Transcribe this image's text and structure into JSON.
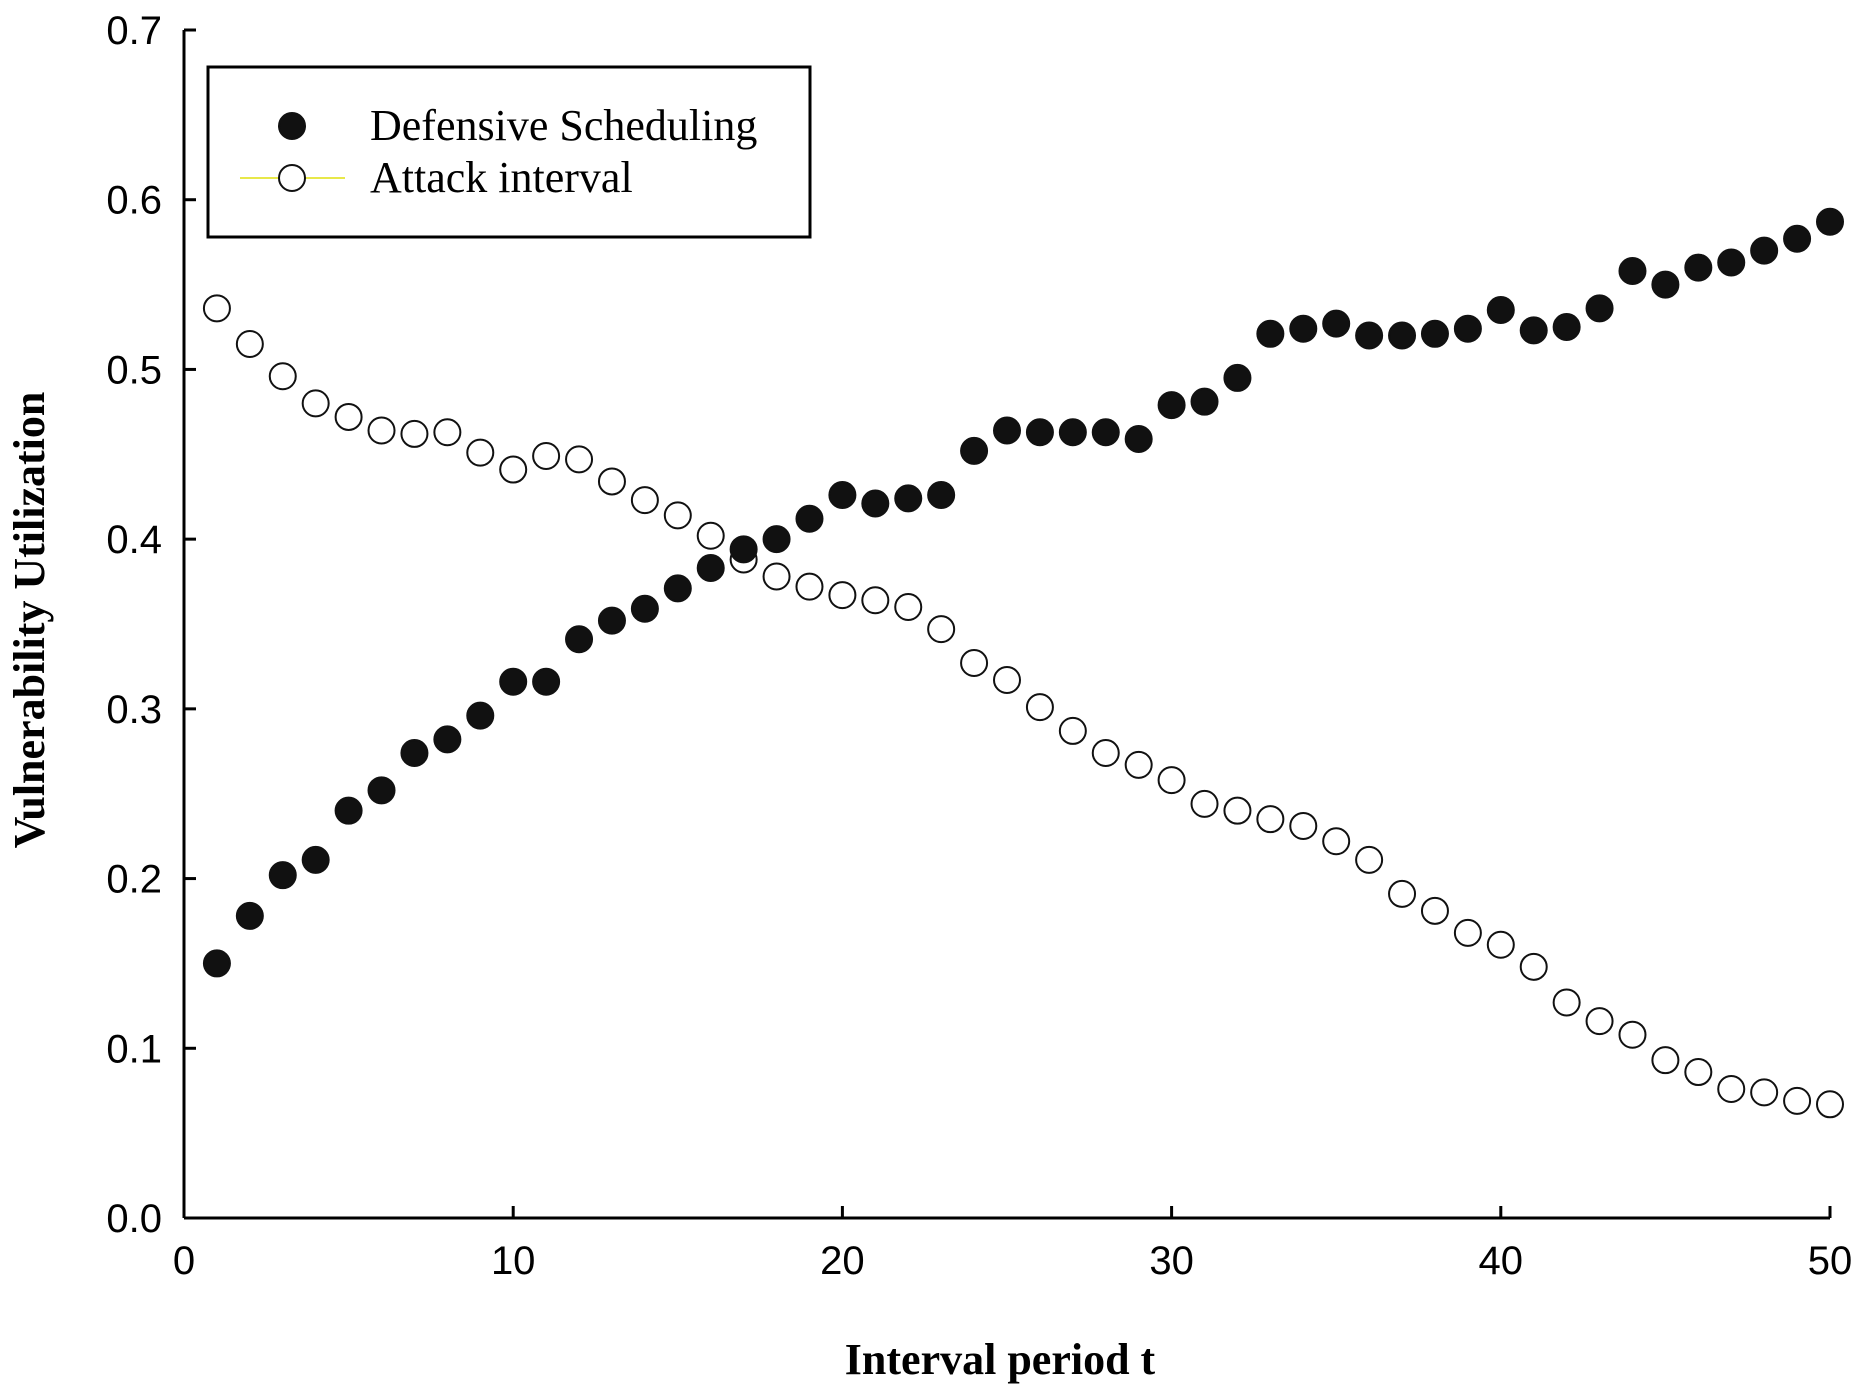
{
  "chart_data": {
    "type": "scatter",
    "title": "",
    "xlabel": "Interval period t",
    "ylabel": "Vulnerability Utilization",
    "xlim": [
      0,
      50
    ],
    "ylim": [
      0.0,
      0.7
    ],
    "xticks": [
      0,
      10,
      20,
      30,
      40,
      50
    ],
    "xtick_labels": [
      "0",
      "10",
      "20",
      "30",
      "40",
      "50"
    ],
    "yticks": [
      0.0,
      0.1,
      0.2,
      0.3,
      0.4,
      0.5,
      0.6,
      0.7
    ],
    "ytick_labels": [
      "0.0",
      "0.1",
      "0.2",
      "0.3",
      "0.4",
      "0.5",
      "0.6",
      "0.7"
    ],
    "grid": false,
    "legend_position": "top-left",
    "x": [
      1,
      2,
      3,
      4,
      5,
      6,
      7,
      8,
      9,
      10,
      11,
      12,
      13,
      14,
      15,
      16,
      17,
      18,
      19,
      20,
      21,
      22,
      23,
      24,
      25,
      26,
      27,
      28,
      29,
      30,
      31,
      32,
      33,
      34,
      35,
      36,
      37,
      38,
      39,
      40,
      41,
      42,
      43,
      44,
      45,
      46,
      47,
      48,
      49,
      50
    ],
    "series": [
      {
        "name": "Defensive Scheduling",
        "marker": "filled-circle",
        "color": "#111111",
        "values": [
          0.15,
          0.178,
          0.202,
          0.211,
          0.24,
          0.252,
          0.274,
          0.282,
          0.296,
          0.316,
          0.316,
          0.341,
          0.352,
          0.359,
          0.371,
          0.383,
          0.394,
          0.4,
          0.412,
          0.426,
          0.421,
          0.424,
          0.426,
          0.452,
          0.464,
          0.463,
          0.463,
          0.463,
          0.459,
          0.479,
          0.481,
          0.495,
          0.521,
          0.524,
          0.527,
          0.52,
          0.52,
          0.521,
          0.524,
          0.535,
          0.523,
          0.525,
          0.536,
          0.558,
          0.55,
          0.56,
          0.563,
          0.57,
          0.577,
          0.587
        ]
      },
      {
        "name": "Attack interval",
        "marker": "open-circle",
        "color": "#111111",
        "line_color": "#e8e84a",
        "values": [
          0.536,
          0.515,
          0.496,
          0.48,
          0.472,
          0.464,
          0.462,
          0.463,
          0.451,
          0.441,
          0.449,
          0.447,
          0.434,
          0.423,
          0.414,
          0.402,
          0.388,
          0.378,
          0.372,
          0.367,
          0.364,
          0.36,
          0.347,
          0.327,
          0.317,
          0.301,
          0.287,
          0.274,
          0.267,
          0.258,
          0.244,
          0.24,
          0.235,
          0.231,
          0.222,
          0.211,
          0.191,
          0.181,
          0.168,
          0.161,
          0.148,
          0.127,
          0.116,
          0.108,
          0.093,
          0.086,
          0.076,
          0.074,
          0.069,
          0.067
        ]
      }
    ]
  }
}
